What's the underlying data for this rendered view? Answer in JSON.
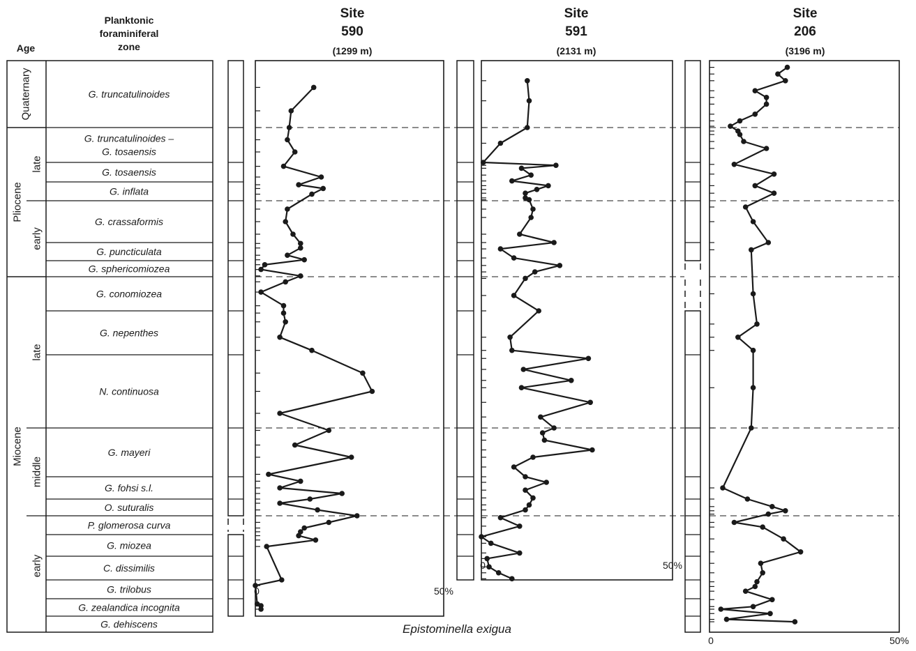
{
  "headers": {
    "age": "Age",
    "zone": [
      "Planktonic",
      "foraminiferal",
      "zone"
    ]
  },
  "x_label": "Epistominella exigua",
  "ages": [
    {
      "label": "Quaternary",
      "top": 0,
      "bot": 1
    },
    {
      "label": "Pliocene",
      "top": 1,
      "bot": 7
    },
    {
      "label": "Miocene",
      "top": 7,
      "bot": 18
    }
  ],
  "sub_ages": [
    {
      "label": "late",
      "top": 1,
      "bot": 4
    },
    {
      "label": "early",
      "top": 4,
      "bot": 7
    },
    {
      "label": "late",
      "top": 7,
      "bot": 10
    },
    {
      "label": "middle",
      "top": 10,
      "bot": 13
    },
    {
      "label": "early",
      "top": 13,
      "bot": 18
    }
  ],
  "zones": [
    {
      "lines": [
        "G. truncatulinoides"
      ]
    },
    {
      "lines": [
        "G. truncatulinoides –",
        "G. tosaensis"
      ]
    },
    {
      "lines": [
        "G. tosaensis"
      ]
    },
    {
      "lines": [
        "G. inflata"
      ]
    },
    {
      "lines": [
        "G. crassaformis"
      ]
    },
    {
      "lines": [
        "G. puncticulata"
      ]
    },
    {
      "lines": [
        "G. sphericomiozea"
      ]
    },
    {
      "lines": [
        "G. conomiozea"
      ]
    },
    {
      "lines": [
        "G. nepenthes"
      ]
    },
    {
      "lines": [
        "N. continuosa"
      ]
    },
    {
      "lines": [
        "G. mayeri"
      ]
    },
    {
      "lines": [
        "G. fohsi s.l."
      ]
    },
    {
      "lines": [
        "O. suturalis"
      ]
    },
    {
      "lines": [
        "P. glomerosa curva"
      ]
    },
    {
      "lines": [
        "G. miozea"
      ]
    },
    {
      "lines": [
        "C. dissimilis"
      ]
    },
    {
      "lines": [
        "G. trilobus"
      ]
    },
    {
      "lines": [
        "G. zealandica incognita"
      ]
    },
    {
      "lines": [
        "G. dehiscens"
      ]
    }
  ],
  "chart_data": [
    {
      "type": "line",
      "site_label": "Site",
      "site": "590",
      "depth": "(1299 m)",
      "xlim": [
        0,
        50
      ],
      "x_ticks": [
        "0",
        "50%"
      ],
      "zone_range": [
        0,
        18
      ],
      "gap_zones": [
        13
      ],
      "points": [
        {
          "x": 15.5,
          "y": 0.4
        },
        {
          "x": 9.5,
          "y": 0.75
        },
        {
          "x": 9.0,
          "y": 1.0
        },
        {
          "x": 8.5,
          "y": 1.35
        },
        {
          "x": 10.5,
          "y": 1.7
        },
        {
          "x": 7.5,
          "y": 2.2
        },
        {
          "x": 17.5,
          "y": 2.75
        },
        {
          "x": 11.5,
          "y": 3.15
        },
        {
          "x": 18.0,
          "y": 3.35
        },
        {
          "x": 15.0,
          "y": 3.65
        },
        {
          "x": 8.5,
          "y": 4.2
        },
        {
          "x": 8.0,
          "y": 4.5
        },
        {
          "x": 10.0,
          "y": 4.8
        },
        {
          "x": 12.0,
          "y": 5.05
        },
        {
          "x": 12.0,
          "y": 5.3
        },
        {
          "x": 8.5,
          "y": 5.7
        },
        {
          "x": 13.0,
          "y": 5.95
        },
        {
          "x": 2.5,
          "y": 6.25
        },
        {
          "x": 1.5,
          "y": 6.55
        },
        {
          "x": 12.0,
          "y": 6.95
        },
        {
          "x": 8.0,
          "y": 7.15
        },
        {
          "x": 1.5,
          "y": 7.45
        },
        {
          "x": 7.5,
          "y": 7.85
        },
        {
          "x": 7.5,
          "y": 8.05
        },
        {
          "x": 8.0,
          "y": 8.25
        },
        {
          "x": 6.5,
          "y": 8.6
        },
        {
          "x": 15.0,
          "y": 8.9
        },
        {
          "x": 28.5,
          "y": 9.25
        },
        {
          "x": 31.0,
          "y": 9.5
        },
        {
          "x": 6.5,
          "y": 9.8
        },
        {
          "x": 19.5,
          "y": 10.05
        },
        {
          "x": 10.5,
          "y": 10.35
        },
        {
          "x": 25.5,
          "y": 10.6
        },
        {
          "x": 3.5,
          "y": 10.95
        },
        {
          "x": 12.0,
          "y": 11.2
        },
        {
          "x": 6.5,
          "y": 11.5
        },
        {
          "x": 23.0,
          "y": 11.75
        },
        {
          "x": 14.5,
          "y": 12.0
        },
        {
          "x": 6.5,
          "y": 12.25
        },
        {
          "x": 16.5,
          "y": 12.65
        },
        {
          "x": 27.0,
          "y": 13.0
        },
        {
          "x": 19.5,
          "y": 13.35
        },
        {
          "x": 13.0,
          "y": 13.65
        },
        {
          "x": 12.0,
          "y": 13.85
        },
        {
          "x": 11.5,
          "y": 14.05
        },
        {
          "x": 16.0,
          "y": 14.25
        },
        {
          "x": 3.0,
          "y": 14.55
        },
        {
          "x": 7.0,
          "y": 16.0
        },
        {
          "x": 0.0,
          "y": 16.3
        },
        {
          "x": 0.5,
          "y": 17.3
        },
        {
          "x": 1.5,
          "y": 17.4
        },
        {
          "x": 1.5,
          "y": 17.6
        }
      ]
    },
    {
      "type": "line",
      "site_label": "Site",
      "site": "591",
      "depth": "(2131 m)",
      "xlim": [
        0,
        50
      ],
      "x_ticks": [
        "0",
        "50%"
      ],
      "zone_range": [
        0,
        16
      ],
      "gap_zones": [],
      "points": [
        {
          "x": 12.0,
          "y": 0.3
        },
        {
          "x": 12.5,
          "y": 0.6
        },
        {
          "x": 12.0,
          "y": 1.0
        },
        {
          "x": 5.0,
          "y": 1.45
        },
        {
          "x": 0.5,
          "y": 2.0
        },
        {
          "x": 19.5,
          "y": 2.15
        },
        {
          "x": 10.5,
          "y": 2.3
        },
        {
          "x": 13.0,
          "y": 2.65
        },
        {
          "x": 8.0,
          "y": 2.95
        },
        {
          "x": 17.5,
          "y": 3.2
        },
        {
          "x": 14.5,
          "y": 3.4
        },
        {
          "x": 11.5,
          "y": 3.6
        },
        {
          "x": 11.5,
          "y": 3.85
        },
        {
          "x": 12.5,
          "y": 3.95
        },
        {
          "x": 13.5,
          "y": 4.2
        },
        {
          "x": 13.0,
          "y": 4.4
        },
        {
          "x": 10.0,
          "y": 4.8
        },
        {
          "x": 19.0,
          "y": 5.0
        },
        {
          "x": 5.0,
          "y": 5.35
        },
        {
          "x": 8.5,
          "y": 5.85
        },
        {
          "x": 20.5,
          "y": 6.3
        },
        {
          "x": 14.0,
          "y": 6.7
        },
        {
          "x": 11.5,
          "y": 7.05
        },
        {
          "x": 8.5,
          "y": 7.55
        },
        {
          "x": 15.0,
          "y": 8.0
        },
        {
          "x": 7.5,
          "y": 8.6
        },
        {
          "x": 8.0,
          "y": 8.9
        },
        {
          "x": 28.0,
          "y": 9.05
        },
        {
          "x": 11.0,
          "y": 9.2
        },
        {
          "x": 23.5,
          "y": 9.35
        },
        {
          "x": 10.5,
          "y": 9.45
        },
        {
          "x": 28.5,
          "y": 9.65
        },
        {
          "x": 15.5,
          "y": 9.85
        },
        {
          "x": 19.0,
          "y": 10.0
        },
        {
          "x": 16.0,
          "y": 10.1
        },
        {
          "x": 16.5,
          "y": 10.25
        },
        {
          "x": 29.0,
          "y": 10.45
        },
        {
          "x": 13.5,
          "y": 10.6
        },
        {
          "x": 8.5,
          "y": 10.8
        },
        {
          "x": 11.5,
          "y": 11.0
        },
        {
          "x": 17.0,
          "y": 11.25
        },
        {
          "x": 11.5,
          "y": 11.6
        },
        {
          "x": 13.5,
          "y": 11.95
        },
        {
          "x": 12.5,
          "y": 12.35
        },
        {
          "x": 11.5,
          "y": 12.65
        },
        {
          "x": 5.0,
          "y": 13.1
        },
        {
          "x": 10.0,
          "y": 13.55
        },
        {
          "x": 0.0,
          "y": 14.1
        },
        {
          "x": 2.5,
          "y": 14.4
        },
        {
          "x": 10.0,
          "y": 14.85
        },
        {
          "x": 1.5,
          "y": 15.1
        },
        {
          "x": 2.0,
          "y": 15.45
        },
        {
          "x": 4.5,
          "y": 15.7
        },
        {
          "x": 8.0,
          "y": 15.95
        }
      ]
    },
    {
      "type": "line",
      "site_label": "Site",
      "site": "206",
      "depth": "(3196 m)",
      "xlim": [
        0,
        50
      ],
      "x_ticks": [
        "0",
        "50%"
      ],
      "zone_range": [
        0,
        19
      ],
      "gap_zones": [
        6,
        7
      ],
      "points": [
        {
          "x": 20.5,
          "y": 0.1
        },
        {
          "x": 18.0,
          "y": 0.2
        },
        {
          "x": 20.0,
          "y": 0.3
        },
        {
          "x": 12.0,
          "y": 0.45
        },
        {
          "x": 15.0,
          "y": 0.55
        },
        {
          "x": 15.0,
          "y": 0.65
        },
        {
          "x": 12.0,
          "y": 0.8
        },
        {
          "x": 8.0,
          "y": 0.9
        },
        {
          "x": 5.5,
          "y": 0.98
        },
        {
          "x": 7.5,
          "y": 1.1
        },
        {
          "x": 8.0,
          "y": 1.2
        },
        {
          "x": 9.0,
          "y": 1.4
        },
        {
          "x": 15.0,
          "y": 1.6
        },
        {
          "x": 6.5,
          "y": 2.1
        },
        {
          "x": 17.0,
          "y": 2.6
        },
        {
          "x": 12.0,
          "y": 3.2
        },
        {
          "x": 17.0,
          "y": 3.6
        },
        {
          "x": 9.5,
          "y": 4.15
        },
        {
          "x": 11.5,
          "y": 4.5
        },
        {
          "x": 15.5,
          "y": 5.0
        },
        {
          "x": 11.0,
          "y": 5.4
        },
        {
          "x": 11.5,
          "y": 7.5
        },
        {
          "x": 12.5,
          "y": 8.3
        },
        {
          "x": 7.5,
          "y": 8.6
        },
        {
          "x": 11.5,
          "y": 8.9
        },
        {
          "x": 11.5,
          "y": 9.45
        },
        {
          "x": 11.0,
          "y": 10.0
        },
        {
          "x": 3.5,
          "y": 11.5
        },
        {
          "x": 10.0,
          "y": 12.0
        },
        {
          "x": 16.5,
          "y": 12.45
        },
        {
          "x": 20.0,
          "y": 12.7
        },
        {
          "x": 15.5,
          "y": 12.9
        },
        {
          "x": 6.5,
          "y": 13.35
        },
        {
          "x": 14.0,
          "y": 13.6
        },
        {
          "x": 19.5,
          "y": 14.2
        },
        {
          "x": 24.0,
          "y": 14.8
        },
        {
          "x": 13.5,
          "y": 15.3
        },
        {
          "x": 14.0,
          "y": 15.7
        },
        {
          "x": 12.5,
          "y": 16.1
        },
        {
          "x": 12.0,
          "y": 16.35
        },
        {
          "x": 9.5,
          "y": 16.6
        },
        {
          "x": 16.5,
          "y": 17.05
        },
        {
          "x": 11.5,
          "y": 17.45
        },
        {
          "x": 3.0,
          "y": 17.6
        },
        {
          "x": 16.0,
          "y": 17.85
        },
        {
          "x": 4.5,
          "y": 18.2
        },
        {
          "x": 22.5,
          "y": 18.35
        }
      ]
    }
  ]
}
